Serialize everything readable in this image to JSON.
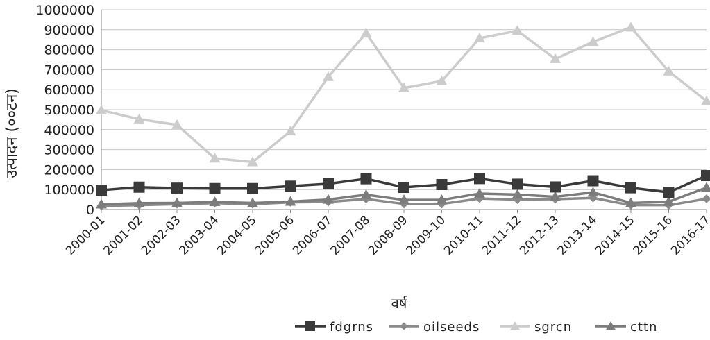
{
  "chart_data": {
    "type": "line",
    "xlabel": "वर्ष",
    "ylabel": "उत्पादन (००टन)",
    "ylim": [
      0,
      1000000
    ],
    "ytick_step": 100000,
    "grid": true,
    "legend_position": "bottom",
    "categories": [
      "2000-01",
      "2001-02",
      "2002-03",
      "2003-04",
      "2004-05",
      "2005-06",
      "2006-07",
      "2007-08",
      "2008-09",
      "2009-10",
      "2010-11",
      "2011-12",
      "2012-13",
      "2013-14",
      "2014-15",
      "2015-16",
      "2016-17"
    ],
    "series": [
      {
        "name": "fdgrns",
        "color": "#3a3a3a",
        "marker": "square",
        "values": [
          97000,
          112000,
          107000,
          105000,
          105000,
          117000,
          129000,
          154000,
          111000,
          125000,
          155000,
          127000,
          113000,
          144000,
          109000,
          86000,
          170000
        ]
      },
      {
        "name": "oilseeds",
        "color": "#8a8a8a",
        "marker": "diamond",
        "values": [
          18000,
          22000,
          27000,
          32000,
          27000,
          36000,
          38000,
          53000,
          28000,
          28000,
          55000,
          50000,
          52000,
          58000,
          22000,
          22000,
          54000
        ]
      },
      {
        "name": "sgrcn",
        "color": "#cccccc",
        "marker": "triangle",
        "values": [
          497000,
          452000,
          424000,
          256000,
          238000,
          392000,
          664000,
          883000,
          608000,
          643000,
          857000,
          895000,
          754000,
          839000,
          912000,
          692000,
          543000
        ]
      },
      {
        "name": "cttn",
        "color": "#7c7c7c",
        "marker": "triangle",
        "values": [
          26000,
          32000,
          33000,
          38000,
          33000,
          40000,
          50000,
          74000,
          48000,
          48000,
          80000,
          75000,
          64000,
          86000,
          33000,
          39000,
          110000
        ]
      }
    ]
  }
}
